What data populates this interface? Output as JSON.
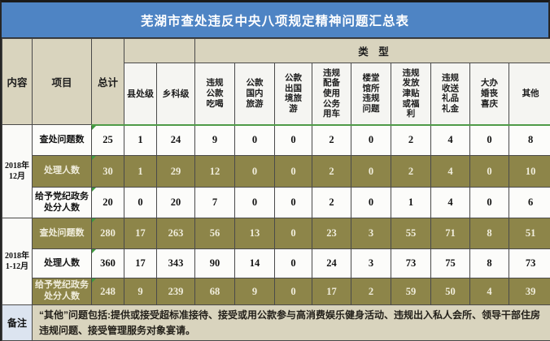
{
  "chart_data": {
    "type": "table",
    "title": "芜湖市查处违反中央八项规定精神问题汇总表",
    "header": {
      "content": "内容",
      "project": "项目",
      "total": "总计",
      "type_group": "类　型",
      "level_cols": [
        "县处级",
        "乡科级"
      ],
      "type_cols": [
        "违规公款吃喝",
        "公款国内旅游",
        "公款出国境旅游",
        "违规配备使用公务用车",
        "楼堂馆所违规问题",
        "违规发放津贴或福利",
        "违规收送礼品礼金",
        "大办婚丧喜庆",
        "其他"
      ]
    },
    "sections": [
      {
        "period": "2018年12月",
        "rows": [
          {
            "label": "查处问题数",
            "highlight": false,
            "values": [
              25,
              1,
              24,
              9,
              0,
              0,
              2,
              0,
              2,
              4,
              0,
              8
            ]
          },
          {
            "label": "处理人数",
            "highlight": true,
            "values": [
              30,
              1,
              29,
              12,
              0,
              0,
              2,
              0,
              2,
              4,
              0,
              10
            ]
          },
          {
            "label": "给予党纪政务处分人数",
            "highlight": false,
            "values": [
              20,
              0,
              20,
              7,
              0,
              0,
              2,
              0,
              1,
              4,
              0,
              6
            ]
          }
        ]
      },
      {
        "period": "2018年1-12月",
        "rows": [
          {
            "label": "查处问题数",
            "highlight": true,
            "values": [
              280,
              17,
              263,
              56,
              13,
              0,
              23,
              3,
              55,
              71,
              8,
              51
            ]
          },
          {
            "label": "处理人数",
            "highlight": false,
            "values": [
              360,
              17,
              343,
              90,
              14,
              0,
              24,
              3,
              73,
              75,
              8,
              73
            ]
          },
          {
            "label": "给予党纪政务处分人数",
            "highlight": true,
            "values": [
              248,
              9,
              239,
              68,
              9,
              0,
              17,
              2,
              59,
              50,
              4,
              39
            ]
          }
        ]
      }
    ],
    "note": {
      "label": "备注",
      "text": "“其他”问题包括:提供或接受超标准接待、接受或用公款参与高消费娱乐健身活动、违规出入私人会所、领导干部住房违规问题、接受管理服务对象宴请。"
    },
    "colors": {
      "title_bar": "#4E84C4",
      "header_beige": "#D9D4BE",
      "highlight_row": "#8D8549",
      "highlight_text": "#F0EDDC",
      "note_label_bg": "#DCE4F0",
      "green_indicator": "#3f9a3f"
    }
  }
}
